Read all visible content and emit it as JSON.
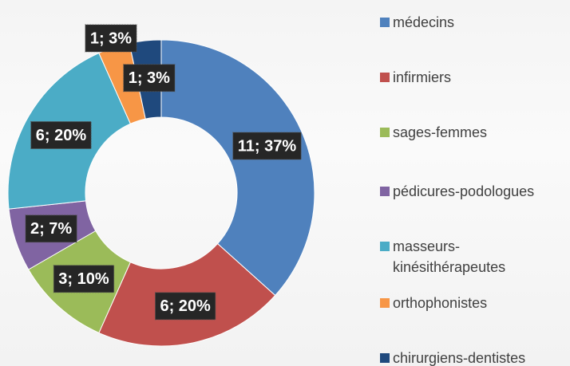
{
  "chart_data": {
    "type": "donut",
    "categories": [
      "médecins",
      "infirmiers",
      "sages-femmes",
      "pédicures-podologues",
      "masseurs-kinésithérapeutes",
      "orthophonistes",
      "chirurgiens-dentistes"
    ],
    "values": [
      11,
      6,
      3,
      2,
      6,
      1,
      1
    ],
    "value_labels": [
      "11; 37%",
      "6; 20%",
      "3; 10%",
      "2; 7%",
      "6; 20%",
      "1; 3%",
      "1; 3%"
    ],
    "colors": [
      "#4f81bd",
      "#c0504d",
      "#9bbb59",
      "#8064a2",
      "#4bacc6",
      "#f79646",
      "#1f497d"
    ],
    "legend": "right"
  }
}
